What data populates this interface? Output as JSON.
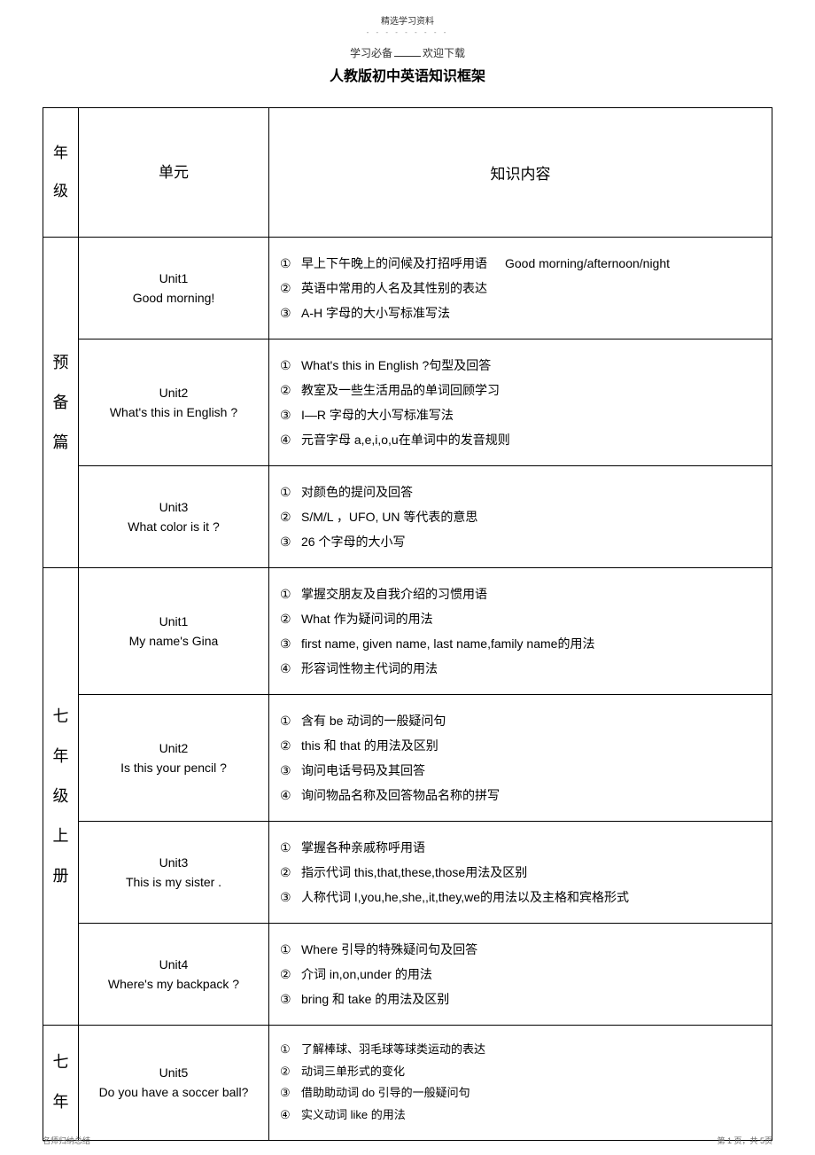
{
  "header": {
    "top_line": "精选学习资料",
    "dots": "- - - - - - - - -",
    "sub_line_prefix": "学习必备",
    "sub_line_suffix": "欢迎下载",
    "main_title": "人教版初中英语知识框架"
  },
  "table_headers": {
    "grade": "年级",
    "unit": "单元",
    "content": "知识内容"
  },
  "sections": [
    {
      "grade_label": "预备篇",
      "rows": [
        {
          "unit_title": "Unit1",
          "unit_subtitle": "Good morning!",
          "items": [
            {
              "num": "①",
              "text": "早上下午晚上的问候及打招呼用语",
              "extra": "Good morning/afternoon/night"
            },
            {
              "num": "②",
              "text": "英语中常用的人名及其性别的表达"
            },
            {
              "num": "③",
              "text": "A-H 字母的大小写标准写法"
            }
          ]
        },
        {
          "unit_title": "Unit2",
          "unit_subtitle": "What's this in English ?",
          "items": [
            {
              "num": "①",
              "text": "What's this in English ?句型及回答"
            },
            {
              "num": "②",
              "text": "教室及一些生活用品的单词回顾学习"
            },
            {
              "num": "③",
              "text": "I—R 字母的大小写标准写法"
            },
            {
              "num": "④",
              "text": "元音字母 a,e,i,o,u在单词中的发音规则"
            }
          ]
        },
        {
          "unit_title": "Unit3",
          "unit_subtitle": "What color is it ?",
          "items": [
            {
              "num": "①",
              "text": "对颜色的提问及回答"
            },
            {
              "num": "②",
              "text": "S/M/L ，UFO, UN 等代表的意思"
            },
            {
              "num": "③",
              "text": "26 个字母的大小写"
            }
          ]
        }
      ]
    },
    {
      "grade_label": "七年级上册",
      "rows": [
        {
          "unit_title": "Unit1",
          "unit_subtitle": "My name's Gina",
          "items": [
            {
              "num": "①",
              "text": "掌握交朋友及自我介绍的习惯用语"
            },
            {
              "num": "②",
              "text": "What 作为疑问词的用法"
            },
            {
              "num": "③",
              "text": "first name, given name, last name,family name的用法"
            },
            {
              "num": "④",
              "text": "形容词性物主代词的用法"
            }
          ]
        },
        {
          "unit_title": "Unit2",
          "unit_subtitle": "Is this your pencil ?",
          "items": [
            {
              "num": "①",
              "text": "含有 be 动词的一般疑问句"
            },
            {
              "num": "②",
              "text": "this 和 that 的用法及区别"
            },
            {
              "num": "③",
              "text": "询问电话号码及其回答"
            },
            {
              "num": "④",
              "text": "询问物品名称及回答物品名称的拼写"
            }
          ]
        },
        {
          "unit_title": "Unit3",
          "unit_subtitle": "This is my sister .",
          "items": [
            {
              "num": "①",
              "text": "掌握各种亲戚称呼用语"
            },
            {
              "num": "②",
              "text": "指示代词 this,that,these,those用法及区别"
            },
            {
              "num": "③",
              "text": "人称代词 I,you,he,she,,it,they,we的用法以及主格和宾格形式"
            }
          ]
        },
        {
          "unit_title": "Unit4",
          "unit_subtitle": "Where's my backpack ?",
          "items": [
            {
              "num": "①",
              "text": "Where 引导的特殊疑问句及回答"
            },
            {
              "num": "②",
              "text": "介词 in,on,under 的用法"
            },
            {
              "num": "③",
              "text": "bring 和 take 的用法及区别"
            }
          ]
        }
      ]
    },
    {
      "grade_label": "七年",
      "rows": [
        {
          "unit_title": "Unit5",
          "unit_subtitle": "Do you have a soccer ball?",
          "smaller": true,
          "items": [
            {
              "num": "①",
              "text": "了解棒球、羽毛球等球类运动的表达"
            },
            {
              "num": "②",
              "text": "动词三单形式的变化"
            },
            {
              "num": "③",
              "text": "借助助动词  do 引导的一般疑问句"
            },
            {
              "num": "④",
              "text": "实义动词  like 的用法"
            }
          ]
        }
      ]
    }
  ],
  "footer": {
    "left": "名师归纳总结",
    "right": "第 1 页，共 5页"
  }
}
